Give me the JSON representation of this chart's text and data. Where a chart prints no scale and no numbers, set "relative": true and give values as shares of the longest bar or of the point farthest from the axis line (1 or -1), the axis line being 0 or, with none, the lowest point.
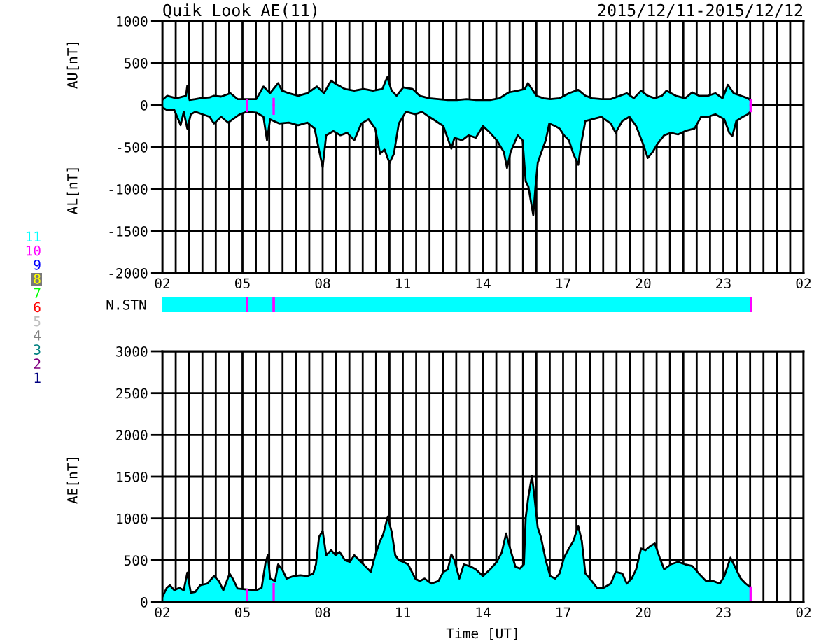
{
  "chart_data": [
    {
      "type": "area",
      "title": "Quik Look AE(11)",
      "subtitle": "2015/12/11-2015/12/12",
      "ylabel": "AU[nT]",
      "annotations": [
        "AL[nT]"
      ],
      "xlim": [
        "2015-12-11T02:00",
        "2015-12-12T02:00"
      ],
      "xticks": [
        {
          "value": "2015-12-11T02:00",
          "label": "02"
        },
        {
          "value": "2015-12-11T02:30",
          "label": null
        },
        {
          "value": "2015-12-11T03:00",
          "label": null
        },
        {
          "value": "2015-12-11T03:30",
          "label": null
        },
        {
          "value": "2015-12-11T04:00",
          "label": null
        },
        {
          "value": "2015-12-11T04:30",
          "label": null
        },
        {
          "value": "2015-12-11T05:00",
          "label": "05"
        },
        {
          "value": "2015-12-11T05:30",
          "label": null
        },
        {
          "value": "2015-12-11T06:00",
          "label": null
        },
        {
          "value": "2015-12-11T06:30",
          "label": null
        },
        {
          "value": "2015-12-11T07:00",
          "label": null
        },
        {
          "value": "2015-12-11T07:30",
          "label": null
        },
        {
          "value": "2015-12-11T08:00",
          "label": "08"
        },
        {
          "value": "2015-12-11T08:30",
          "label": null
        },
        {
          "value": "2015-12-11T09:00",
          "label": null
        },
        {
          "value": "2015-12-11T09:30",
          "label": null
        },
        {
          "value": "2015-12-11T10:00",
          "label": null
        },
        {
          "value": "2015-12-11T10:30",
          "label": null
        },
        {
          "value": "2015-12-11T11:00",
          "label": "11"
        },
        {
          "value": "2015-12-11T11:30",
          "label": null
        },
        {
          "value": "2015-12-11T12:00",
          "label": null
        },
        {
          "value": "2015-12-11T12:30",
          "label": null
        },
        {
          "value": "2015-12-11T13:00",
          "label": null
        },
        {
          "value": "2015-12-11T13:30",
          "label": null
        },
        {
          "value": "2015-12-11T14:00",
          "label": "14"
        },
        {
          "value": "2015-12-11T14:30",
          "label": null
        },
        {
          "value": "2015-12-11T15:00",
          "label": null
        },
        {
          "value": "2015-12-11T15:30",
          "label": null
        },
        {
          "value": "2015-12-11T16:00",
          "label": null
        },
        {
          "value": "2015-12-11T16:30",
          "label": null
        },
        {
          "value": "2015-12-11T17:00",
          "label": "17"
        },
        {
          "value": "2015-12-11T17:30",
          "label": null
        },
        {
          "value": "2015-12-11T18:00",
          "label": null
        },
        {
          "value": "2015-12-11T18:30",
          "label": null
        },
        {
          "value": "2015-12-11T19:00",
          "label": null
        },
        {
          "value": "2015-12-11T19:30",
          "label": null
        },
        {
          "value": "2015-12-11T20:00",
          "label": "20"
        },
        {
          "value": "2015-12-11T20:30",
          "label": null
        },
        {
          "value": "2015-12-11T21:00",
          "label": null
        },
        {
          "value": "2015-12-11T21:30",
          "label": null
        },
        {
          "value": "2015-12-11T22:00",
          "label": null
        },
        {
          "value": "2015-12-11T22:30",
          "label": null
        },
        {
          "value": "2015-12-11T23:00",
          "label": "23"
        },
        {
          "value": "2015-12-11T23:30",
          "label": null
        },
        {
          "value": "2015-12-12T00:00",
          "label": null
        },
        {
          "value": "2015-12-12T00:30",
          "label": null
        },
        {
          "value": "2015-12-12T01:00",
          "label": null
        },
        {
          "value": "2015-12-12T01:30",
          "label": null
        },
        {
          "value": "2015-12-12T02:00",
          "label": "02"
        }
      ],
      "ylim": [
        -2000,
        1000
      ],
      "yticks": [
        -2000,
        -1500,
        -1000,
        -500,
        0,
        500,
        1000
      ],
      "grid": true,
      "series": [
        {
          "color": "#00ffff",
          "x": [
            "2015-12-11T02:00",
            "2015-12-11T02:11",
            "2015-12-11T02:31",
            "2015-12-11T02:53",
            "2015-12-11T02:56",
            "2015-12-11T03:01",
            "2015-12-11T03:14",
            "2015-12-11T03:25",
            "2015-12-11T03:46",
            "2015-12-11T03:56",
            "2015-12-11T04:12",
            "2015-12-11T04:33",
            "2015-12-11T04:49",
            "2015-12-11T05:10",
            "2015-12-11T05:31",
            "2015-12-11T05:47",
            "2015-12-11T06:02",
            "2015-12-11T06:20",
            "2015-12-11T06:29",
            "2015-12-11T06:44",
            "2015-12-11T07:05",
            "2015-12-11T07:26",
            "2015-12-11T07:47",
            "2015-12-11T08:03",
            "2015-12-11T08:19",
            "2015-12-11T08:29",
            "2015-12-11T08:40",
            "2015-12-11T08:50",
            "2015-12-11T09:11",
            "2015-12-11T09:32",
            "2015-12-11T09:53",
            "2015-12-11T10:14",
            "2015-12-11T10:25",
            "2015-12-11T10:35",
            "2015-12-11T10:46",
            "2015-12-11T11:01",
            "2015-12-11T11:22",
            "2015-12-11T11:38",
            "2015-12-11T11:59",
            "2015-12-11T12:20",
            "2015-12-11T12:41",
            "2015-12-11T13:02",
            "2015-12-11T13:23",
            "2015-12-11T13:44",
            "2015-12-11T14:16",
            "2015-12-11T14:37",
            "2015-12-11T14:58",
            "2015-12-11T15:18",
            "2015-12-11T15:34",
            "2015-12-11T15:41",
            "2015-12-11T15:50",
            "2015-12-11T16:00",
            "2015-12-11T16:16",
            "2015-12-11T16:31",
            "2015-12-11T16:52",
            "2015-12-11T17:13",
            "2015-12-11T17:34",
            "2015-12-11T17:50",
            "2015-12-11T18:05",
            "2015-12-11T18:26",
            "2015-12-11T18:47",
            "2015-12-11T19:08",
            "2015-12-11T19:23",
            "2015-12-11T19:39",
            "2015-12-11T19:55",
            "2015-12-11T20:10",
            "2015-12-11T20:26",
            "2015-12-11T20:42",
            "2015-12-11T20:52",
            "2015-12-11T21:13",
            "2015-12-11T21:34",
            "2015-12-11T21:50",
            "2015-12-11T22:05",
            "2015-12-11T22:26",
            "2015-12-11T22:42",
            "2015-12-11T22:58",
            "2015-12-11T23:10",
            "2015-12-11T23:23",
            "2015-12-11T23:39",
            "2015-12-11T23:55",
            "2015-12-12T00:00"
          ],
          "values": [
            60,
            110,
            80,
            110,
            230,
            60,
            70,
            80,
            90,
            110,
            100,
            140,
            70,
            70,
            70,
            220,
            140,
            260,
            170,
            140,
            110,
            140,
            220,
            140,
            290,
            250,
            220,
            190,
            170,
            190,
            170,
            190,
            330,
            170,
            110,
            210,
            190,
            110,
            80,
            70,
            60,
            60,
            70,
            60,
            60,
            80,
            150,
            170,
            190,
            260,
            190,
            110,
            80,
            70,
            80,
            140,
            180,
            110,
            80,
            70,
            70,
            110,
            140,
            80,
            170,
            110,
            80,
            110,
            170,
            110,
            80,
            150,
            110,
            110,
            140,
            80,
            240,
            140,
            110,
            80,
            60
          ]
        },
        {
          "color": "#00ffff",
          "x": [
            "2015-12-11T02:00",
            "2015-12-11T02:11",
            "2015-12-11T02:27",
            "2015-12-11T02:41",
            "2015-12-11T02:48",
            "2015-12-11T02:56",
            "2015-12-11T03:04",
            "2015-12-11T03:14",
            "2015-12-11T03:30",
            "2015-12-11T03:46",
            "2015-12-11T03:56",
            "2015-12-11T04:12",
            "2015-12-11T04:28",
            "2015-12-11T04:38",
            "2015-12-11T04:54",
            "2015-12-11T05:10",
            "2015-12-11T05:31",
            "2015-12-11T05:47",
            "2015-12-11T05:55",
            "2015-12-11T06:02",
            "2015-12-11T06:23",
            "2015-12-11T06:44",
            "2015-12-11T07:05",
            "2015-12-11T07:26",
            "2015-12-11T07:42",
            "2015-12-11T07:52",
            "2015-12-11T08:00",
            "2015-12-11T08:08",
            "2015-12-11T08:24",
            "2015-12-11T08:40",
            "2015-12-11T08:55",
            "2015-12-11T09:11",
            "2015-12-11T09:27",
            "2015-12-11T09:43",
            "2015-12-11T09:58",
            "2015-12-11T10:09",
            "2015-12-11T10:19",
            "2015-12-11T10:30",
            "2015-12-11T10:40",
            "2015-12-11T10:51",
            "2015-12-11T11:07",
            "2015-12-11T11:28",
            "2015-12-11T11:43",
            "2015-12-11T11:59",
            "2015-12-11T12:14",
            "2015-12-11T12:31",
            "2015-12-11T12:49",
            "2015-12-11T12:56",
            "2015-12-11T13:13",
            "2015-12-11T13:28",
            "2015-12-11T13:44",
            "2015-12-11T14:00",
            "2015-12-11T14:16",
            "2015-12-11T14:31",
            "2015-12-11T14:47",
            "2015-12-11T14:54",
            "2015-12-11T15:02",
            "2015-12-11T15:18",
            "2015-12-11T15:29",
            "2015-12-11T15:36",
            "2015-12-11T15:42",
            "2015-12-11T15:50",
            "2015-12-11T15:53",
            "2015-12-11T15:58",
            "2015-12-11T16:03",
            "2015-12-11T16:10",
            "2015-12-11T16:21",
            "2015-12-11T16:29",
            "2015-12-11T16:42",
            "2015-12-11T16:52",
            "2015-12-11T17:02",
            "2015-12-11T17:13",
            "2015-12-11T17:23",
            "2015-12-11T17:34",
            "2015-12-11T17:42",
            "2015-12-11T17:50",
            "2015-12-11T18:05",
            "2015-12-11T18:26",
            "2015-12-11T18:47",
            "2015-12-11T18:58",
            "2015-12-11T19:13",
            "2015-12-11T19:29",
            "2015-12-11T19:44",
            "2015-12-11T20:00",
            "2015-12-11T20:10",
            "2015-12-11T20:21",
            "2015-12-11T20:31",
            "2015-12-11T20:47",
            "2015-12-11T21:02",
            "2015-12-11T21:18",
            "2015-12-11T21:34",
            "2015-12-11T21:55",
            "2015-12-11T22:10",
            "2015-12-11T22:26",
            "2015-12-11T22:42",
            "2015-12-11T23:02",
            "2015-12-11T23:13",
            "2015-12-11T23:20",
            "2015-12-11T23:29",
            "2015-12-11T23:44",
            "2015-12-11T23:55",
            "2015-12-12T00:00"
          ],
          "values": [
            -30,
            -60,
            -60,
            -240,
            -80,
            -280,
            -110,
            -80,
            -110,
            -140,
            -220,
            -140,
            -210,
            -170,
            -110,
            -80,
            -90,
            -140,
            -420,
            -170,
            -220,
            -210,
            -240,
            -210,
            -280,
            -540,
            -740,
            -360,
            -310,
            -360,
            -330,
            -420,
            -220,
            -170,
            -280,
            -580,
            -530,
            -690,
            -580,
            -220,
            -80,
            -110,
            -80,
            -140,
            -190,
            -250,
            -520,
            -390,
            -420,
            -360,
            -390,
            -250,
            -330,
            -420,
            -560,
            -750,
            -560,
            -360,
            -420,
            -910,
            -970,
            -1220,
            -1310,
            -970,
            -690,
            -580,
            -420,
            -220,
            -250,
            -280,
            -360,
            -420,
            -580,
            -710,
            -420,
            -190,
            -170,
            -140,
            -220,
            -330,
            -190,
            -140,
            -250,
            -470,
            -630,
            -560,
            -470,
            -360,
            -330,
            -350,
            -310,
            -280,
            -140,
            -140,
            -110,
            -170,
            -330,
            -370,
            -190,
            -140,
            -110,
            -80
          ]
        },
        {
          "type": "bar",
          "color": "#ff00ff",
          "x": [
            "2015-12-11T05:10",
            "2015-12-11T06:10",
            "2015-12-12T00:01"
          ],
          "values": [
            70,
            80,
            60
          ]
        },
        {
          "type": "bar",
          "color": "#ff00ff",
          "x": [
            "2015-12-11T05:10",
            "2015-12-11T06:10",
            "2015-12-12T00:01"
          ],
          "values": [
            -80,
            -110,
            -80
          ]
        }
      ]
    },
    {
      "type": "bar",
      "orientation": "horizontal",
      "stacked": true,
      "relative": true,
      "categories": [
        "N.STN"
      ],
      "tick_labels": "y",
      "series": [
        {
          "name": "11",
          "color": "#00ffff",
          "values": [
            0.1425
          ]
        },
        {
          "name": "10",
          "color": "#ff00ff",
          "values": [
            0.0024
          ]
        },
        {
          "color": "#00ffff",
          "values": [
            0.0428
          ]
        },
        {
          "color": "#ff00ff",
          "values": [
            0.0024
          ]
        },
        {
          "color": "#00ffff",
          "values": [
            0.8075
          ]
        },
        {
          "color": "#ff00ff",
          "values": [
            0.0024
          ]
        },
        {
          "name": "9",
          "color": "#0000ff",
          "values": [
            null
          ]
        },
        {
          "name": "8",
          "color": "#ffff00",
          "values": [
            null
          ]
        },
        {
          "name": "7",
          "color": "#00ff00",
          "values": [
            null
          ]
        },
        {
          "name": "6",
          "color": "#ff0000",
          "values": [
            null
          ]
        },
        {
          "name": "5",
          "color": "#c0c0c0",
          "values": [
            null
          ]
        },
        {
          "name": "4",
          "color": "#808080",
          "values": [
            null
          ]
        },
        {
          "name": "3",
          "color": "#008080",
          "values": [
            null
          ]
        },
        {
          "name": "2",
          "color": "#800080",
          "values": [
            null
          ]
        },
        {
          "name": "1",
          "color": "#000080",
          "values": [
            null
          ]
        }
      ]
    },
    {
      "type": "area",
      "xlabel": "Time [UT]",
      "ylabel": "AE[nT]",
      "xlim": [
        "2015-12-11T02:00",
        "2015-12-12T02:00"
      ],
      "xticks": [
        {
          "value": "2015-12-11T02:00",
          "label": "02"
        },
        {
          "value": "2015-12-11T02:30",
          "label": null
        },
        {
          "value": "2015-12-11T03:00",
          "label": null
        },
        {
          "value": "2015-12-11T03:30",
          "label": null
        },
        {
          "value": "2015-12-11T04:00",
          "label": null
        },
        {
          "value": "2015-12-11T04:30",
          "label": null
        },
        {
          "value": "2015-12-11T05:00",
          "label": "05"
        },
        {
          "value": "2015-12-11T05:30",
          "label": null
        },
        {
          "value": "2015-12-11T06:00",
          "label": null
        },
        {
          "value": "2015-12-11T06:30",
          "label": null
        },
        {
          "value": "2015-12-11T07:00",
          "label": null
        },
        {
          "value": "2015-12-11T07:30",
          "label": null
        },
        {
          "value": "2015-12-11T08:00",
          "label": "08"
        },
        {
          "value": "2015-12-11T08:30",
          "label": null
        },
        {
          "value": "2015-12-11T09:00",
          "label": null
        },
        {
          "value": "2015-12-11T09:30",
          "label": null
        },
        {
          "value": "2015-12-11T10:00",
          "label": null
        },
        {
          "value": "2015-12-11T10:30",
          "label": null
        },
        {
          "value": "2015-12-11T11:00",
          "label": "11"
        },
        {
          "value": "2015-12-11T11:30",
          "label": null
        },
        {
          "value": "2015-12-11T12:00",
          "label": null
        },
        {
          "value": "2015-12-11T12:30",
          "label": null
        },
        {
          "value": "2015-12-11T13:00",
          "label": null
        },
        {
          "value": "2015-12-11T13:30",
          "label": null
        },
        {
          "value": "2015-12-11T14:00",
          "label": "14"
        },
        {
          "value": "2015-12-11T14:30",
          "label": null
        },
        {
          "value": "2015-12-11T15:00",
          "label": null
        },
        {
          "value": "2015-12-11T15:30",
          "label": null
        },
        {
          "value": "2015-12-11T16:00",
          "label": null
        },
        {
          "value": "2015-12-11T16:30",
          "label": null
        },
        {
          "value": "2015-12-11T17:00",
          "label": "17"
        },
        {
          "value": "2015-12-11T17:30",
          "label": null
        },
        {
          "value": "2015-12-11T18:00",
          "label": null
        },
        {
          "value": "2015-12-11T18:30",
          "label": null
        },
        {
          "value": "2015-12-11T19:00",
          "label": null
        },
        {
          "value": "2015-12-11T19:30",
          "label": null
        },
        {
          "value": "2015-12-11T20:00",
          "label": "20"
        },
        {
          "value": "2015-12-11T20:30",
          "label": null
        },
        {
          "value": "2015-12-11T21:00",
          "label": null
        },
        {
          "value": "2015-12-11T21:30",
          "label": null
        },
        {
          "value": "2015-12-11T22:00",
          "label": null
        },
        {
          "value": "2015-12-11T22:30",
          "label": null
        },
        {
          "value": "2015-12-11T23:00",
          "label": "23"
        },
        {
          "value": "2015-12-11T23:30",
          "label": null
        },
        {
          "value": "2015-12-12T00:00",
          "label": null
        },
        {
          "value": "2015-12-12T00:30",
          "label": null
        },
        {
          "value": "2015-12-12T01:00",
          "label": null
        },
        {
          "value": "2015-12-12T01:30",
          "label": null
        },
        {
          "value": "2015-12-12T02:00",
          "label": "02"
        }
      ],
      "ylim": [
        0,
        3000
      ],
      "yticks": [
        0,
        500,
        1000,
        1500,
        2000,
        2500,
        3000
      ],
      "grid": true,
      "series": [
        {
          "color": "#00ffff",
          "x": [
            "2015-12-11T02:00",
            "2015-12-11T02:10",
            "2015-12-11T02:17",
            "2015-12-11T02:27",
            "2015-12-11T02:38",
            "2015-12-11T02:48",
            "2015-12-11T02:56",
            "2015-12-11T03:04",
            "2015-12-11T03:14",
            "2015-12-11T03:25",
            "2015-12-11T03:41",
            "2015-12-11T03:56",
            "2015-12-11T04:07",
            "2015-12-11T04:17",
            "2015-12-11T04:31",
            "2015-12-11T04:38",
            "2015-12-11T04:49",
            "2015-12-11T05:10",
            "2015-12-11T05:31",
            "2015-12-11T05:43",
            "2015-12-11T05:52",
            "2015-12-11T05:57",
            "2015-12-11T06:02",
            "2015-12-11T06:13",
            "2015-12-11T06:20",
            "2015-12-11T06:29",
            "2015-12-11T06:39",
            "2015-12-11T06:55",
            "2015-12-11T07:10",
            "2015-12-11T07:26",
            "2015-12-11T07:39",
            "2015-12-11T07:45",
            "2015-12-11T07:52",
            "2015-12-11T08:00",
            "2015-12-11T08:08",
            "2015-12-11T08:19",
            "2015-12-11T08:29",
            "2015-12-11T08:38",
            "2015-12-11T08:50",
            "2015-12-11T09:01",
            "2015-12-11T09:11",
            "2015-12-11T09:22",
            "2015-12-11T09:37",
            "2015-12-11T09:48",
            "2015-12-11T09:58",
            "2015-12-11T10:09",
            "2015-12-11T10:16",
            "2015-12-11T10:26",
            "2015-12-11T10:35",
            "2015-12-11T10:43",
            "2015-12-11T10:51",
            "2015-12-11T11:01",
            "2015-12-11T11:12",
            "2015-12-11T11:28",
            "2015-12-11T11:38",
            "2015-12-11T11:49",
            "2015-12-11T12:04",
            "2015-12-11T12:20",
            "2015-12-11T12:31",
            "2015-12-11T12:41",
            "2015-12-11T12:49",
            "2015-12-11T12:56",
            "2015-12-11T13:07",
            "2015-12-11T13:17",
            "2015-12-11T13:34",
            "2015-12-11T13:44",
            "2015-12-11T14:00",
            "2015-12-11T14:16",
            "2015-12-11T14:31",
            "2015-12-11T14:42",
            "2015-12-11T14:52",
            "2015-12-11T15:02",
            "2015-12-11T15:13",
            "2015-12-11T15:23",
            "2015-12-11T15:32",
            "2015-12-11T15:36",
            "2015-12-11T15:42",
            "2015-12-11T15:50",
            "2015-12-11T15:55",
            "2015-12-11T16:03",
            "2015-12-11T16:10",
            "2015-12-11T16:21",
            "2015-12-11T16:31",
            "2015-12-11T16:42",
            "2015-12-11T16:52",
            "2015-12-11T17:02",
            "2015-12-11T17:13",
            "2015-12-11T17:23",
            "2015-12-11T17:34",
            "2015-12-11T17:42",
            "2015-12-11T17:50",
            "2015-12-11T18:00",
            "2015-12-11T18:16",
            "2015-12-11T18:31",
            "2015-12-11T18:47",
            "2015-12-11T18:58",
            "2015-12-11T19:13",
            "2015-12-11T19:23",
            "2015-12-11T19:34",
            "2015-12-11T19:44",
            "2015-12-11T19:55",
            "2015-12-11T20:05",
            "2015-12-11T20:16",
            "2015-12-11T20:26",
            "2015-12-11T20:37",
            "2015-12-11T20:47",
            "2015-12-11T21:02",
            "2015-12-11T21:18",
            "2015-12-11T21:34",
            "2015-12-11T21:50",
            "2015-12-11T22:05",
            "2015-12-11T22:21",
            "2015-12-11T22:37",
            "2015-12-11T22:52",
            "2015-12-11T23:02",
            "2015-12-11T23:16",
            "2015-12-11T23:26",
            "2015-12-11T23:39",
            "2015-12-11T23:50",
            "2015-12-12T00:00"
          ],
          "values": [
            60,
            170,
            200,
            140,
            170,
            140,
            350,
            110,
            120,
            200,
            220,
            310,
            250,
            140,
            340,
            280,
            160,
            150,
            140,
            170,
            480,
            560,
            280,
            250,
            450,
            390,
            280,
            310,
            320,
            310,
            340,
            450,
            780,
            850,
            560,
            620,
            560,
            600,
            500,
            480,
            560,
            500,
            420,
            360,
            560,
            730,
            810,
            1020,
            840,
            560,
            500,
            480,
            450,
            280,
            250,
            280,
            220,
            250,
            360,
            390,
            570,
            500,
            280,
            450,
            420,
            390,
            310,
            390,
            480,
            590,
            820,
            620,
            420,
            400,
            450,
            1010,
            1260,
            1510,
            1290,
            890,
            780,
            500,
            310,
            280,
            340,
            530,
            640,
            730,
            910,
            730,
            340,
            280,
            170,
            170,
            220,
            360,
            340,
            220,
            280,
            390,
            640,
            620,
            670,
            700,
            530,
            390,
            450,
            480,
            450,
            430,
            340,
            250,
            250,
            220,
            310,
            530,
            420,
            280,
            220,
            180
          ]
        },
        {
          "type": "bar",
          "color": "#ff00ff",
          "x": [
            "2015-12-11T05:10",
            "2015-12-11T06:10",
            "2015-12-12T00:01"
          ],
          "values": [
            150,
            220,
            180
          ]
        }
      ]
    }
  ]
}
